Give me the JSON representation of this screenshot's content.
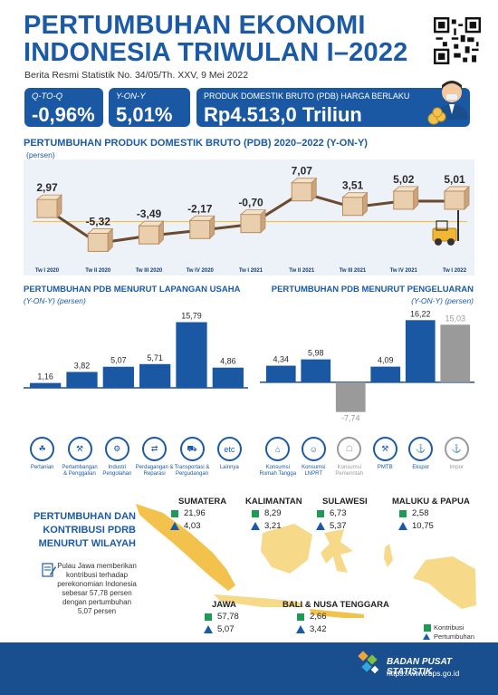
{
  "header": {
    "title_line1": "PERTUMBUHAN EKONOMI",
    "title_line2": "INDONESIA TRIWULAN I–2022",
    "subtitle": "Berita Resmi Statistik No. 34/05/Th. XXV, 9 Mei 2022"
  },
  "stats": {
    "qtoq_label": "Q-TO-Q",
    "qtoq_value": "-0,96%",
    "yony_label": "Y-ON-Y",
    "yony_value": "5,01%",
    "pdb_label": "PRODUK DOMESTIK BRUTO (PDB) HARGA BERLAKU",
    "pdb_value": "Rp4.513,0 Triliun"
  },
  "colors": {
    "primary": "#1a5aa6",
    "dark_blue": "#1a4f8f",
    "bar_blue": "#1a58a3",
    "bar_grey": "#9a9a9a",
    "line_brown": "#6b4a2e",
    "green": "#1e9a55",
    "map_yellow": "#f2c24d",
    "map_light": "#f7d98a"
  },
  "growth_chart": {
    "title": "PERTUMBUHAN PRODUK DOMESTIK BRUTO (PDB) 2020–2022 (Y-ON-Y)",
    "unit": "(persen)",
    "chart_data": {
      "type": "line",
      "categories": [
        "Tw I 2020",
        "Tw II 2020",
        "Tw III 2020",
        "Tw IV 2020",
        "Tw I 2021",
        "Tw II 2021",
        "Tw III 2021",
        "Tw IV 2021",
        "Tw I 2022"
      ],
      "values": [
        2.97,
        -5.32,
        -3.49,
        -2.17,
        -0.7,
        7.07,
        3.51,
        5.02,
        5.01
      ],
      "labels": [
        "2,97",
        "-5,32",
        "-3,49",
        "-2,17",
        "-0,70",
        "7,07",
        "3,51",
        "5,02",
        "5,01"
      ],
      "ylim": [
        -7,
        9
      ]
    }
  },
  "sector_chart": {
    "title": "PERTUMBUHAN PDB MENURUT LAPANGAN USAHA",
    "unit": "(Y-ON-Y) (persen)",
    "chart_data": {
      "type": "bar",
      "categories": [
        "Pertanian",
        "Pertambangan & Penggalian",
        "Industri Pengolahan",
        "Perdagangan & Reparasi",
        "Transportasi & Pergudangan",
        "Lainnya"
      ],
      "values": [
        1.16,
        3.82,
        5.07,
        5.71,
        15.79,
        4.86
      ],
      "labels": [
        "1,16",
        "3,82",
        "5,07",
        "5,71",
        "15,79",
        "4,86"
      ],
      "ylim": [
        0,
        17
      ]
    },
    "icons": [
      "leaf-icon",
      "mining-icon",
      "factory-icon",
      "trade-icon",
      "truck-icon",
      "etc-icon"
    ],
    "icon_glyphs": [
      "☘",
      "⚒",
      "⚙",
      "⇄",
      "⛟",
      "etc"
    ]
  },
  "expenditure_chart": {
    "title": "PERTUMBUHAN PDB MENURUT PENGELUARAN",
    "unit": "(Y-ON-Y) (persen)",
    "chart_data": {
      "type": "bar",
      "categories": [
        "Konsumsi Rumah Tangga",
        "Konsumsi LNPRT",
        "Konsumsi Pemerintah",
        "PMTB",
        "Ekspor",
        "Impor"
      ],
      "values": [
        4.34,
        5.98,
        -7.74,
        4.09,
        16.22,
        15.03
      ],
      "labels": [
        "4,34",
        "5,98",
        "-7,74",
        "4,09",
        "16,22",
        "15,03"
      ],
      "ylim": [
        -9,
        17
      ]
    },
    "icons": [
      "household-icon",
      "person-icon",
      "government-icon",
      "crane-icon",
      "export-ship-icon",
      "import-ship-icon"
    ],
    "icon_glyphs": [
      "⌂",
      "☺",
      "☖",
      "⚒",
      "⚓",
      "⚓"
    ]
  },
  "regional": {
    "title_line1": "PERTUMBUHAN DAN",
    "title_line2": "KONTRIBUSI PDRB",
    "title_line3": "MENURUT WILAYAH",
    "note": "Pulau Jawa memberikan kontribusi terhadap perekonomian Indonesia sebesar 57,78 persen dengan pertumbuhan 5,07 persen",
    "regions": [
      {
        "name": "SUMATERA",
        "contribution": "21,96",
        "growth": "4,03"
      },
      {
        "name": "KALIMANTAN",
        "contribution": "8,29",
        "growth": "3,21"
      },
      {
        "name": "SULAWESI",
        "contribution": "6,73",
        "growth": "5,37"
      },
      {
        "name": "MALUKU & PAPUA",
        "contribution": "2,58",
        "growth": "10,75"
      },
      {
        "name": "JAWA",
        "contribution": "57,78",
        "growth": "5,07"
      },
      {
        "name": "BALI & NUSA TENGGARA",
        "contribution": "2,66",
        "growth": "3,42"
      }
    ],
    "legend_contribution": "Kontribusi",
    "legend_growth": "Pertumbuhan"
  },
  "footer": {
    "agency": "BADAN PUSAT STATISTIK",
    "url": "https://www.bps.go.id"
  }
}
